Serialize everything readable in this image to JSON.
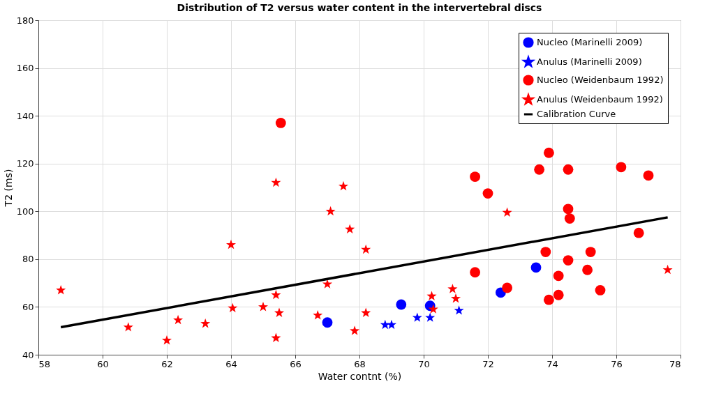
{
  "chart_data": {
    "type": "scatter",
    "title": "Distribution of T2 versus water content in the intervertebral discs",
    "xlabel": "Water contnt (%)",
    "ylabel": "T2 (ms)",
    "xlim": [
      58,
      78
    ],
    "xticks": [
      58,
      60,
      62,
      64,
      66,
      68,
      70,
      72,
      74,
      76,
      78
    ],
    "ylim": [
      40,
      180
    ],
    "yticks": [
      40,
      60,
      80,
      100,
      120,
      140,
      160,
      180
    ],
    "grid": true,
    "legend": "top right",
    "series": [
      {
        "name": "Nucleo (Marinelli 2009)",
        "color": "#0000ff",
        "marker": "circle",
        "x": [
          67.0,
          69.3,
          70.2,
          72.4,
          73.5
        ],
        "values": [
          53.5,
          61,
          60.5,
          66,
          76.5
        ]
      },
      {
        "name": "Anulus (Marinelli 2009)",
        "color": "#0000ff",
        "marker": "star",
        "x": [
          68.8,
          69.0,
          69.8,
          70.2,
          71.1
        ],
        "values": [
          52.5,
          52.5,
          55.5,
          55.5,
          58.5
        ]
      },
      {
        "name": "Nucleo (Weidenbaum 1992)",
        "color": "#ff0000",
        "marker": "circle",
        "x": [
          65.55,
          71.6,
          72.0,
          73.6,
          73.9,
          74.5,
          74.5,
          74.55,
          73.8,
          75.2,
          74.5,
          75.1,
          71.6,
          74.2,
          76.7,
          76.15,
          77.0,
          72.6,
          74.2,
          73.9,
          75.5
        ],
        "values": [
          137,
          114.5,
          107.5,
          117.5,
          124.5,
          117.5,
          101,
          97,
          83,
          83,
          79.5,
          75.5,
          74.5,
          73,
          91,
          118.5,
          115,
          68,
          65,
          63,
          67
        ]
      },
      {
        "name": "Anulus (Weidenbaum 1992)",
        "color": "#ff0000",
        "marker": "star",
        "x": [
          58.7,
          60.8,
          62.0,
          62.35,
          63.2,
          64.0,
          64.05,
          65.0,
          65.4,
          65.5,
          65.4,
          65.4,
          66.7,
          67.0,
          67.1,
          67.5,
          67.7,
          68.2,
          68.2,
          67.85,
          70.25,
          70.3,
          70.9,
          71.0,
          72.6,
          77.6
        ],
        "values": [
          67,
          51.5,
          46,
          54.5,
          53,
          86,
          59.5,
          60,
          65,
          57.5,
          47,
          112,
          56.5,
          69.5,
          100,
          110.5,
          92.5,
          84,
          57.5,
          50,
          64.5,
          59,
          67.5,
          63.5,
          99.5,
          75.5
        ]
      },
      {
        "name": "Calibration Curve",
        "type": "line",
        "color": "#000000",
        "marker": "none",
        "line_style": "solid",
        "x": [
          58.7,
          77.6
        ],
        "values": [
          51.5,
          97.5
        ]
      }
    ]
  }
}
